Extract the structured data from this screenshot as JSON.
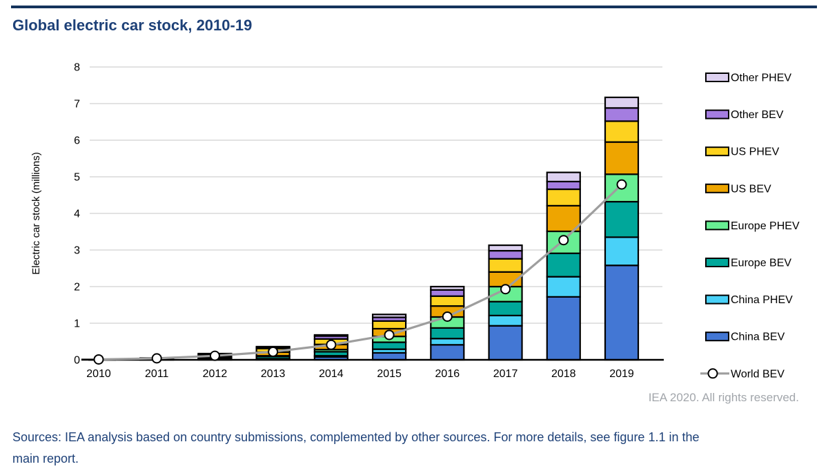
{
  "page": {
    "title": "Global electric car stock, 2010-19",
    "attribution": "IEA 2020. All rights reserved.",
    "sources": "Sources: IEA analysis based on country submissions, complemented by other sources. For more details, see figure 1.1 in the main report."
  },
  "colors": {
    "title_blue": "#1e4178",
    "top_rule": "#14335c",
    "attribution_gray": "#a2a6ab",
    "gridline": "#dedede",
    "axis": "#000000",
    "marker_fill": "#ffffff",
    "segment_border": "#000000"
  },
  "chart_data": {
    "type": "bar",
    "stacked": true,
    "title": "Global electric car stock, 2010-19",
    "xlabel": "",
    "ylabel": "Electric car stock (millions)",
    "ylim": [
      0,
      8
    ],
    "yticks": [
      0,
      1,
      2,
      3,
      4,
      5,
      6,
      7,
      8
    ],
    "grid": true,
    "legend_position": "right",
    "categories": [
      "2010",
      "2011",
      "2012",
      "2013",
      "2014",
      "2015",
      "2016",
      "2017",
      "2018",
      "2019"
    ],
    "series": [
      {
        "name": "China BEV",
        "color": "#4377d4",
        "values": [
          0.0,
          0.01,
          0.02,
          0.03,
          0.08,
          0.19,
          0.41,
          0.93,
          1.72,
          2.58
        ]
      },
      {
        "name": "China PHEV",
        "color": "#49d1f8",
        "values": [
          0.0,
          0.0,
          0.0,
          0.0,
          0.03,
          0.1,
          0.17,
          0.28,
          0.55,
          0.77
        ]
      },
      {
        "name": "Europe BEV",
        "color": "#00a79a",
        "values": [
          0.0,
          0.01,
          0.03,
          0.06,
          0.11,
          0.19,
          0.29,
          0.38,
          0.64,
          0.97
        ]
      },
      {
        "name": "Europe PHEV",
        "color": "#68ee93",
        "values": [
          0.0,
          0.0,
          0.01,
          0.02,
          0.06,
          0.16,
          0.3,
          0.41,
          0.6,
          0.75
        ]
      },
      {
        "name": "US BEV",
        "color": "#eea500",
        "values": [
          0.0,
          0.01,
          0.03,
          0.1,
          0.14,
          0.21,
          0.3,
          0.4,
          0.7,
          0.88
        ]
      },
      {
        "name": "US PHEV",
        "color": "#fdd21f",
        "values": [
          0.0,
          0.01,
          0.04,
          0.1,
          0.15,
          0.21,
          0.27,
          0.36,
          0.45,
          0.57
        ]
      },
      {
        "name": "Other BEV",
        "color": "#a47de0",
        "values": [
          0.01,
          0.01,
          0.03,
          0.03,
          0.08,
          0.1,
          0.17,
          0.22,
          0.21,
          0.36
        ]
      },
      {
        "name": "Other PHEV",
        "color": "#ddd1f0",
        "values": [
          0.0,
          0.0,
          0.01,
          0.02,
          0.03,
          0.08,
          0.09,
          0.15,
          0.25,
          0.29
        ]
      }
    ],
    "line_series": {
      "name": "World BEV",
      "color": "#9e9e9e",
      "values": [
        0.01,
        0.04,
        0.11,
        0.22,
        0.41,
        0.68,
        1.18,
        1.93,
        3.27,
        4.79
      ]
    },
    "legend_order": [
      "Other PHEV",
      "Other BEV",
      "US PHEV",
      "US BEV",
      "Europe PHEV",
      "Europe BEV",
      "China PHEV",
      "China BEV",
      "World BEV"
    ]
  }
}
